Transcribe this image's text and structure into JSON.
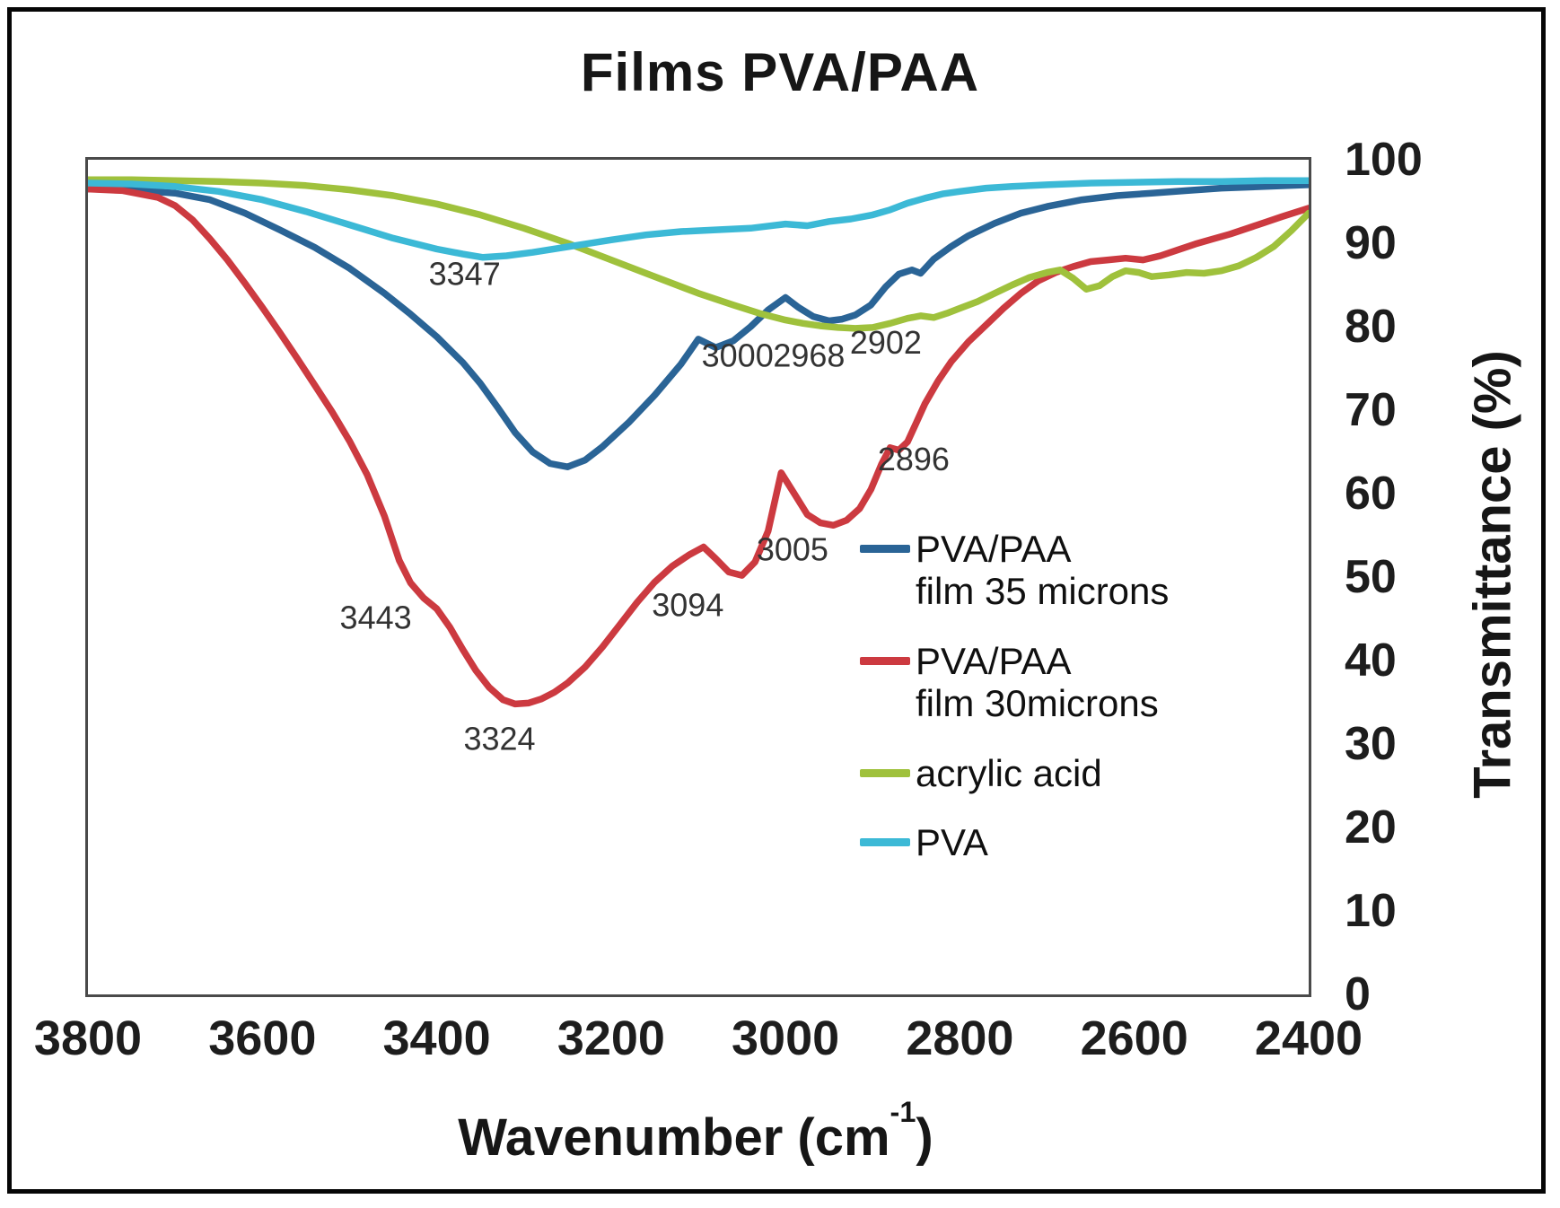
{
  "figure": {
    "title": "Films PVA/PAA"
  },
  "chart_data": {
    "type": "line",
    "title": "Films PVA/PAA",
    "xlabel": {
      "prefix": "Wavenumber (cm",
      "superscript": "-1",
      "suffix": ")"
    },
    "ylabel": "Transmittance (%)",
    "x_axis_reversed": true,
    "xlim": [
      3800,
      2400
    ],
    "ylim": [
      0,
      100
    ],
    "grid": false,
    "legend_position": "inside-right",
    "x_ticks": [
      3800,
      3600,
      3400,
      3200,
      3000,
      2800,
      2600,
      2400
    ],
    "y_ticks": [
      100,
      90,
      80,
      70,
      60,
      50,
      40,
      30,
      20,
      10,
      0
    ],
    "series": [
      {
        "id": "pva-paa-35",
        "name": "PVA/PAA film 35 microns",
        "legend_lines": [
          "PVA/PAA",
          "film 35 microns"
        ],
        "color": "#2a6496",
        "x": [
          3800,
          3750,
          3700,
          3660,
          3620,
          3580,
          3540,
          3500,
          3460,
          3430,
          3400,
          3370,
          3350,
          3330,
          3310,
          3290,
          3270,
          3250,
          3230,
          3210,
          3180,
          3150,
          3120,
          3100,
          3080,
          3060,
          3040,
          3020,
          3000,
          2985,
          2968,
          2950,
          2935,
          2920,
          2902,
          2885,
          2870,
          2855,
          2845,
          2830,
          2810,
          2790,
          2760,
          2730,
          2700,
          2660,
          2620,
          2580,
          2540,
          2500,
          2450,
          2400
        ],
        "t": [
          96.5,
          96.4,
          96.0,
          95.2,
          93.6,
          91.6,
          89.5,
          87.0,
          84.0,
          81.5,
          78.8,
          75.7,
          73.2,
          70.3,
          67.3,
          65.0,
          63.6,
          63.2,
          64.0,
          65.6,
          68.5,
          71.8,
          75.5,
          78.5,
          77.5,
          78.3,
          80.0,
          82.0,
          83.5,
          82.3,
          81.2,
          80.7,
          80.9,
          81.4,
          82.6,
          84.8,
          86.3,
          86.8,
          86.4,
          88.1,
          89.6,
          90.9,
          92.4,
          93.6,
          94.4,
          95.2,
          95.7,
          96.0,
          96.3,
          96.6,
          96.8,
          97.0
        ]
      },
      {
        "id": "pva-paa-30",
        "name": "PVA/PAA film 30microns",
        "legend_lines": [
          "PVA/PAA",
          "film 30microns"
        ],
        "color": "#cc3a40",
        "x": [
          3800,
          3760,
          3720,
          3700,
          3680,
          3660,
          3640,
          3620,
          3600,
          3580,
          3560,
          3540,
          3520,
          3500,
          3480,
          3460,
          3443,
          3430,
          3415,
          3400,
          3385,
          3370,
          3355,
          3340,
          3324,
          3310,
          3295,
          3280,
          3265,
          3250,
          3230,
          3210,
          3190,
          3170,
          3150,
          3130,
          3110,
          3094,
          3080,
          3065,
          3050,
          3035,
          3020,
          3005,
          2990,
          2975,
          2960,
          2945,
          2930,
          2915,
          2902,
          2890,
          2880,
          2870,
          2860,
          2850,
          2840,
          2825,
          2810,
          2790,
          2770,
          2750,
          2730,
          2710,
          2690,
          2670,
          2650,
          2630,
          2610,
          2590,
          2570,
          2550,
          2530,
          2510,
          2490,
          2470,
          2450,
          2430,
          2400
        ],
        "t": [
          96.5,
          96.3,
          95.5,
          94.5,
          92.8,
          90.5,
          88.0,
          85.2,
          82.3,
          79.3,
          76.2,
          73.0,
          69.8,
          66.3,
          62.3,
          57.3,
          52.0,
          49.3,
          47.5,
          46.2,
          44.0,
          41.3,
          38.8,
          36.8,
          35.3,
          34.8,
          34.9,
          35.4,
          36.2,
          37.3,
          39.2,
          41.6,
          44.3,
          47.0,
          49.4,
          51.3,
          52.7,
          53.6,
          52.2,
          50.6,
          50.2,
          51.8,
          55.5,
          62.5,
          60.0,
          57.5,
          56.5,
          56.2,
          56.8,
          58.2,
          60.5,
          63.5,
          65.5,
          65.2,
          66.2,
          68.5,
          70.8,
          73.5,
          75.8,
          78.2,
          80.2,
          82.2,
          84.0,
          85.5,
          86.5,
          87.2,
          87.8,
          88.0,
          88.2,
          88.0,
          88.5,
          89.2,
          89.9,
          90.5,
          91.1,
          91.8,
          92.5,
          93.2,
          94.2
        ]
      },
      {
        "id": "acrylic-acid",
        "name": "acrylic acid",
        "legend_lines": [
          "acrylic acid"
        ],
        "color": "#9fc13c",
        "x": [
          3800,
          3750,
          3700,
          3650,
          3600,
          3550,
          3500,
          3450,
          3400,
          3350,
          3300,
          3250,
          3200,
          3150,
          3100,
          3060,
          3030,
          3000,
          2980,
          2960,
          2940,
          2920,
          2900,
          2880,
          2860,
          2845,
          2830,
          2815,
          2800,
          2780,
          2760,
          2740,
          2720,
          2700,
          2685,
          2670,
          2655,
          2640,
          2625,
          2610,
          2595,
          2580,
          2560,
          2540,
          2520,
          2500,
          2480,
          2460,
          2440,
          2420,
          2400
        ],
        "t": [
          97.6,
          97.6,
          97.5,
          97.4,
          97.2,
          96.9,
          96.4,
          95.7,
          94.7,
          93.4,
          91.8,
          90.0,
          88.0,
          86.0,
          84.0,
          82.6,
          81.6,
          80.8,
          80.4,
          80.1,
          79.9,
          79.8,
          79.9,
          80.4,
          81.0,
          81.3,
          81.1,
          81.6,
          82.2,
          83.0,
          84.0,
          85.0,
          85.9,
          86.5,
          86.8,
          85.8,
          84.5,
          84.9,
          86.0,
          86.7,
          86.5,
          86.0,
          86.2,
          86.5,
          86.4,
          86.7,
          87.3,
          88.3,
          89.6,
          91.5,
          93.6
        ]
      },
      {
        "id": "pva",
        "name": "PVA",
        "legend_lines": [
          "PVA"
        ],
        "color": "#3cb9d6",
        "x": [
          3800,
          3750,
          3700,
          3650,
          3600,
          3550,
          3500,
          3450,
          3400,
          3370,
          3347,
          3320,
          3290,
          3260,
          3230,
          3200,
          3160,
          3120,
          3080,
          3040,
          3000,
          2975,
          2950,
          2925,
          2900,
          2880,
          2860,
          2840,
          2820,
          2800,
          2770,
          2740,
          2700,
          2650,
          2600,
          2550,
          2500,
          2450,
          2400
        ],
        "t": [
          97.2,
          97.1,
          96.8,
          96.2,
          95.2,
          93.8,
          92.2,
          90.6,
          89.3,
          88.7,
          88.3,
          88.5,
          88.9,
          89.4,
          89.9,
          90.4,
          91.0,
          91.4,
          91.6,
          91.8,
          92.3,
          92.1,
          92.6,
          92.9,
          93.4,
          94.0,
          94.8,
          95.4,
          95.9,
          96.2,
          96.6,
          96.8,
          97.0,
          97.2,
          97.3,
          97.4,
          97.4,
          97.5,
          97.5
        ]
      }
    ],
    "annotations": [
      {
        "label": "3347",
        "x": 3368,
        "y": 85.0
      },
      {
        "label": "3000",
        "x": 3055,
        "y": 75.2
      },
      {
        "label": "2968",
        "x": 2973,
        "y": 75.2
      },
      {
        "label": "2902",
        "x": 2885,
        "y": 76.8
      },
      {
        "label": "2896",
        "x": 2853,
        "y": 62.8
      },
      {
        "label": "3005",
        "x": 2992,
        "y": 52.0
      },
      {
        "label": "3094",
        "x": 3112,
        "y": 45.3
      },
      {
        "label": "3443",
        "x": 3470,
        "y": 43.8
      },
      {
        "label": "3324",
        "x": 3328,
        "y": 29.3
      }
    ]
  }
}
